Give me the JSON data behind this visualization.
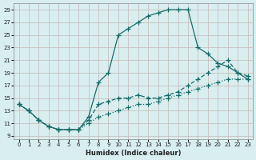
{
  "xlabel": "Humidex (Indice chaleur)",
  "bg_color": "#d8eeef",
  "grid_color": "#c8dfe0",
  "line_color": "#1a6b6b",
  "xlim": [
    -0.5,
    23.5
  ],
  "ylim": [
    8.5,
    30
  ],
  "xticks": [
    0,
    1,
    2,
    3,
    4,
    5,
    6,
    7,
    8,
    9,
    10,
    11,
    12,
    13,
    14,
    15,
    16,
    17,
    18,
    19,
    20,
    21,
    22,
    23
  ],
  "yticks": [
    9,
    11,
    13,
    15,
    17,
    19,
    21,
    23,
    25,
    27,
    29
  ],
  "line1_x": [
    0,
    1,
    2,
    3,
    4,
    5,
    6,
    7,
    8,
    9,
    10,
    11,
    12,
    13,
    14,
    15,
    16,
    17,
    18,
    19,
    20,
    21,
    22,
    23
  ],
  "line1_y": [
    14,
    13,
    11.5,
    10.5,
    10,
    10,
    10,
    12,
    17.5,
    19,
    25,
    26,
    27,
    28,
    28.5,
    29,
    29,
    29,
    23,
    22,
    20.5,
    20,
    19,
    18
  ],
  "line2_x": [
    0,
    1,
    2,
    3,
    4,
    5,
    6,
    7,
    8,
    9,
    10,
    11,
    12,
    13,
    14,
    15,
    16,
    17,
    18,
    19,
    20,
    21,
    22,
    23
  ],
  "line2_y": [
    14,
    13,
    11.5,
    10.5,
    10,
    10,
    10,
    11.5,
    14,
    14.5,
    15,
    15,
    15.5,
    15,
    15,
    15.5,
    16,
    17,
    18,
    19,
    20,
    21,
    19,
    18.5
  ],
  "line3_x": [
    0,
    1,
    2,
    3,
    4,
    5,
    6,
    7,
    8,
    9,
    10,
    11,
    12,
    13,
    14,
    15,
    16,
    17,
    18,
    19,
    20,
    21,
    22,
    23
  ],
  "line3_y": [
    14,
    13,
    11.5,
    10.5,
    10,
    10,
    10,
    11,
    12,
    12.5,
    13,
    13.5,
    14,
    14,
    14.5,
    15,
    15.5,
    16,
    16.5,
    17,
    17.5,
    18,
    18,
    18
  ]
}
